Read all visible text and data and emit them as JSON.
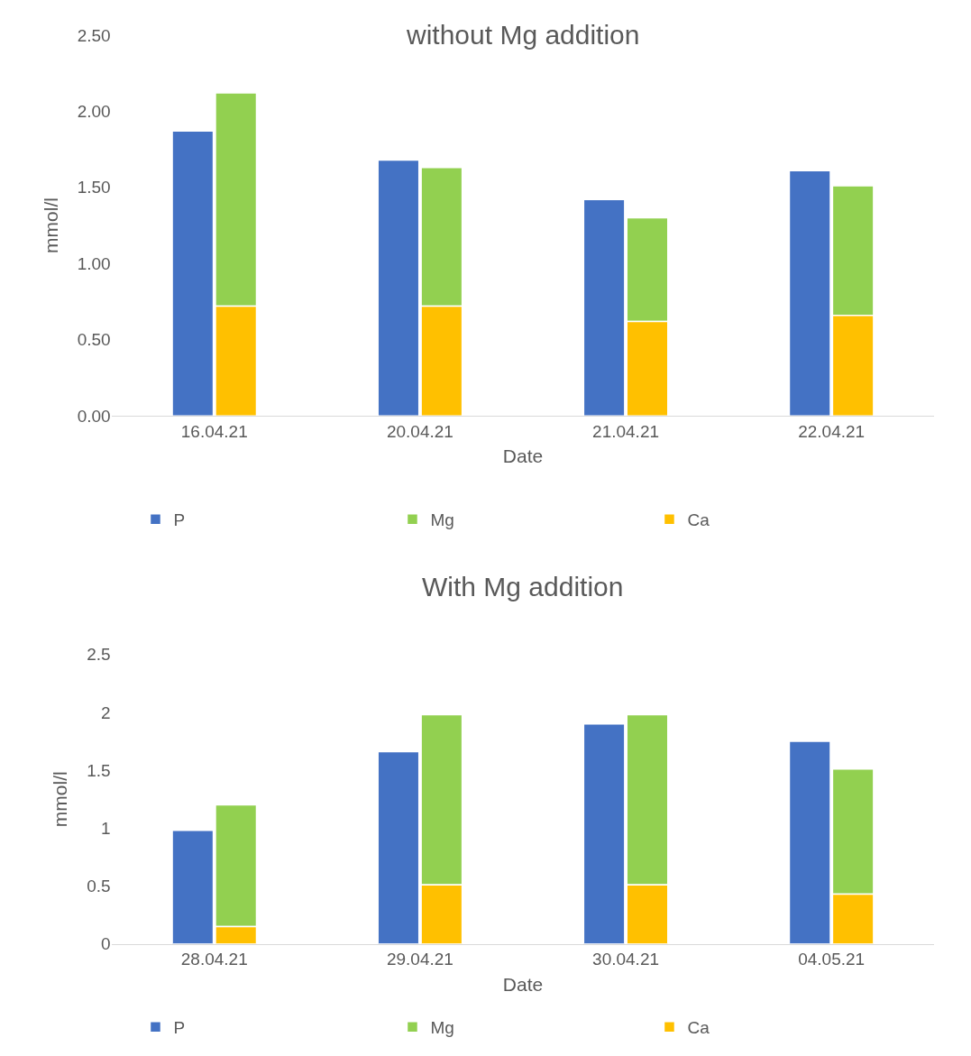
{
  "chart_data": [
    {
      "type": "bar",
      "title": "without Mg addition",
      "xlabel": "Date",
      "ylabel": "mmol/l",
      "categories": [
        "16.04.21",
        "20.04.21",
        "21.04.21",
        "22.04.21"
      ],
      "series": [
        {
          "name": "P",
          "color": "#4472c4",
          "values": [
            1.87,
            1.68,
            1.42,
            1.61
          ]
        },
        {
          "name": "Mg",
          "color": "#92d050",
          "values": [
            1.4,
            0.91,
            0.68,
            0.85
          ],
          "base": [
            0.72,
            0.72,
            0.62,
            0.66
          ]
        },
        {
          "name": "Ca",
          "color": "#ffc000",
          "values": [
            0.72,
            0.72,
            0.62,
            0.66
          ]
        }
      ],
      "ylim": [
        0,
        2.5
      ],
      "yticks": [
        {
          "value": 0,
          "label": "0.00"
        },
        {
          "value": 0.5,
          "label": "0.50"
        },
        {
          "value": 1,
          "label": "1.00"
        },
        {
          "value": 1.5,
          "label": "1.50"
        },
        {
          "value": 2,
          "label": "2.00"
        },
        {
          "value": 2.5,
          "label": "2.50"
        }
      ],
      "legend": "bottom"
    },
    {
      "type": "bar",
      "title": "With Mg addition",
      "xlabel": "Date",
      "ylabel": "mmol/l",
      "categories": [
        "28.04.21",
        "29.04.21",
        "30.04.21",
        "04.05.21"
      ],
      "series": [
        {
          "name": "P",
          "color": "#4472c4",
          "values": [
            0.98,
            1.66,
            1.9,
            1.75
          ]
        },
        {
          "name": "Mg",
          "color": "#92d050",
          "values": [
            1.05,
            1.47,
            1.47,
            1.08
          ],
          "base": [
            0.15,
            0.51,
            0.51,
            0.43
          ]
        },
        {
          "name": "Ca",
          "color": "#ffc000",
          "values": [
            0.15,
            0.51,
            0.51,
            0.43
          ]
        }
      ],
      "ylim": [
        0,
        2.5
      ],
      "yticks": [
        0,
        0.5,
        1,
        1.5,
        2,
        2.5
      ],
      "legend": "bottom"
    }
  ]
}
